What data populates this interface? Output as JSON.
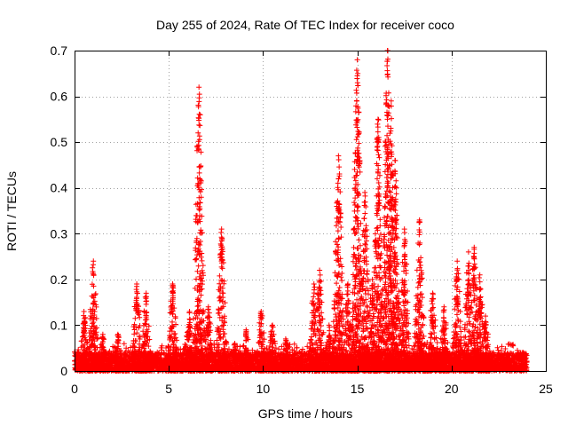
{
  "chart_data": {
    "type": "scatter",
    "title": "Day 255 of 2024, Rate Of TEC Index for receiver coco",
    "xlabel": "GPS time / hours",
    "ylabel": "ROTI / TECUs",
    "xlim": [
      0,
      25
    ],
    "ylim": [
      0,
      0.7
    ],
    "x_ticks": [
      0,
      5,
      10,
      15,
      20,
      25
    ],
    "x_tick_labels": [
      "0",
      "5",
      "10",
      "15",
      "20",
      "25"
    ],
    "y_ticks": [
      0,
      0.1,
      0.2,
      0.3,
      0.4,
      0.5,
      0.6,
      0.7
    ],
    "y_tick_labels": [
      "0",
      "0.1",
      "0.2",
      "0.3",
      "0.4",
      "0.5",
      "0.6",
      "0.7"
    ],
    "grid": true,
    "marker": "+",
    "color": "#ff0000",
    "time_span_hours": [
      0,
      24
    ],
    "baseline_range": [
      0,
      0.04
    ],
    "peaks": [
      {
        "x": 0.5,
        "y": 0.13
      },
      {
        "x": 1.0,
        "y": 0.24
      },
      {
        "x": 1.5,
        "y": 0.08
      },
      {
        "x": 2.3,
        "y": 0.08
      },
      {
        "x": 3.3,
        "y": 0.19
      },
      {
        "x": 3.8,
        "y": 0.17
      },
      {
        "x": 5.2,
        "y": 0.19
      },
      {
        "x": 6.1,
        "y": 0.13
      },
      {
        "x": 6.6,
        "y": 0.62
      },
      {
        "x": 7.1,
        "y": 0.14
      },
      {
        "x": 7.8,
        "y": 0.31
      },
      {
        "x": 8.5,
        "y": 0.06
      },
      {
        "x": 9.1,
        "y": 0.09
      },
      {
        "x": 9.9,
        "y": 0.13
      },
      {
        "x": 10.5,
        "y": 0.1
      },
      {
        "x": 11.2,
        "y": 0.07
      },
      {
        "x": 12.7,
        "y": 0.19
      },
      {
        "x": 13.0,
        "y": 0.22
      },
      {
        "x": 13.5,
        "y": 0.1
      },
      {
        "x": 14.0,
        "y": 0.47
      },
      {
        "x": 14.5,
        "y": 0.19
      },
      {
        "x": 15.0,
        "y": 0.68
      },
      {
        "x": 15.4,
        "y": 0.39
      },
      {
        "x": 15.8,
        "y": 0.2
      },
      {
        "x": 16.1,
        "y": 0.55
      },
      {
        "x": 16.6,
        "y": 0.7
      },
      {
        "x": 16.8,
        "y": 0.59
      },
      {
        "x": 17.0,
        "y": 0.46
      },
      {
        "x": 17.5,
        "y": 0.31
      },
      {
        "x": 18.3,
        "y": 0.33
      },
      {
        "x": 19.0,
        "y": 0.17
      },
      {
        "x": 19.6,
        "y": 0.14
      },
      {
        "x": 20.3,
        "y": 0.24
      },
      {
        "x": 20.9,
        "y": 0.26
      },
      {
        "x": 21.2,
        "y": 0.27
      },
      {
        "x": 21.5,
        "y": 0.21
      },
      {
        "x": 21.8,
        "y": 0.12
      },
      {
        "x": 23.8,
        "y": 0.04
      }
    ]
  }
}
